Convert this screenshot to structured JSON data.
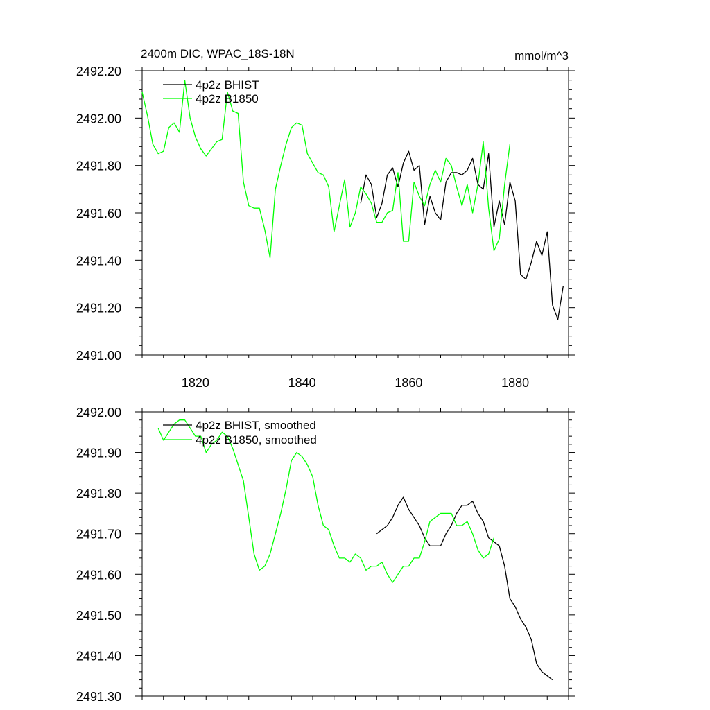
{
  "chart_data": [
    {
      "type": "line",
      "title": "2400m DIC, WPAC_18S-18N",
      "units": "mmol/m^3",
      "xlim": [
        1810,
        1890
      ],
      "ylim": [
        2491.0,
        2492.2
      ],
      "xticks": [
        1820,
        1840,
        1860,
        1880
      ],
      "xtick_labels": [
        "1820",
        "1840",
        "1860",
        "1880"
      ],
      "yticks": [
        2491.0,
        2491.2,
        2491.4,
        2491.6,
        2491.8,
        2492.0,
        2492.2
      ],
      "ytick_labels": [
        "2491.00",
        "2491.20",
        "2491.40",
        "2491.60",
        "2491.80",
        "2492.00",
        "2492.20"
      ],
      "legend_position": "top-left",
      "series": [
        {
          "name": "4p2z BHIST",
          "color": "#000000",
          "x": [
            1851,
            1852,
            1853,
            1854,
            1855,
            1856,
            1857,
            1858,
            1859,
            1860,
            1861,
            1862,
            1863,
            1864,
            1865,
            1866,
            1867,
            1868,
            1869,
            1870,
            1871,
            1872,
            1873,
            1874,
            1875,
            1876,
            1877,
            1878,
            1879,
            1880,
            1881,
            1882,
            1883,
            1884,
            1885,
            1886,
            1887,
            1888,
            1889
          ],
          "values": [
            2491.64,
            2491.76,
            2491.72,
            2491.58,
            2491.64,
            2491.76,
            2491.79,
            2491.71,
            2491.81,
            2491.86,
            2491.78,
            2491.8,
            2491.55,
            2491.67,
            2491.6,
            2491.57,
            2491.73,
            2491.77,
            2491.77,
            2491.76,
            2491.78,
            2491.83,
            2491.72,
            2491.7,
            2491.85,
            2491.54,
            2491.65,
            2491.55,
            2491.73,
            2491.65,
            2491.34,
            2491.32,
            2491.39,
            2491.48,
            2491.42,
            2491.52,
            2491.21,
            2491.15,
            2491.29
          ]
        },
        {
          "name": "4p2z B1850",
          "color": "#00ff00",
          "x": [
            1810,
            1811,
            1812,
            1813,
            1814,
            1815,
            1816,
            1817,
            1818,
            1819,
            1820,
            1821,
            1822,
            1823,
            1824,
            1825,
            1826,
            1827,
            1828,
            1829,
            1830,
            1831,
            1832,
            1833,
            1834,
            1835,
            1836,
            1837,
            1838,
            1839,
            1840,
            1841,
            1842,
            1843,
            1844,
            1845,
            1846,
            1847,
            1848,
            1849,
            1850,
            1851,
            1852,
            1853,
            1854,
            1855,
            1856,
            1857,
            1858,
            1859,
            1860,
            1861,
            1862,
            1863,
            1864,
            1865,
            1866,
            1867,
            1868,
            1869,
            1870,
            1871,
            1872,
            1873,
            1874,
            1875,
            1876,
            1877,
            1878,
            1879
          ],
          "values": [
            2492.11,
            2492.01,
            2491.89,
            2491.85,
            2491.86,
            2491.96,
            2491.98,
            2491.94,
            2492.16,
            2492.0,
            2491.92,
            2491.87,
            2491.84,
            2491.87,
            2491.9,
            2491.91,
            2492.11,
            2492.03,
            2492.02,
            2491.73,
            2491.63,
            2491.62,
            2491.62,
            2491.53,
            2491.41,
            2491.7,
            2491.8,
            2491.89,
            2491.96,
            2491.98,
            2491.97,
            2491.85,
            2491.81,
            2491.77,
            2491.76,
            2491.71,
            2491.52,
            2491.63,
            2491.74,
            2491.54,
            2491.6,
            2491.71,
            2491.68,
            2491.64,
            2491.56,
            2491.56,
            2491.6,
            2491.61,
            2491.77,
            2491.48,
            2491.48,
            2491.73,
            2491.67,
            2491.63,
            2491.72,
            2491.78,
            2491.73,
            2491.83,
            2491.8,
            2491.71,
            2491.63,
            2491.72,
            2491.6,
            2491.72,
            2491.9,
            2491.62,
            2491.44,
            2491.49,
            2491.72,
            2491.89
          ]
        }
      ]
    },
    {
      "type": "line",
      "xlim": [
        1810,
        1890
      ],
      "ylim": [
        2491.3,
        2492.0
      ],
      "xticks": [
        1820,
        1840,
        1860,
        1880
      ],
      "yticks": [
        2491.3,
        2491.4,
        2491.5,
        2491.6,
        2491.7,
        2491.8,
        2491.9,
        2492.0
      ],
      "ytick_labels": [
        "2491.30",
        "2491.40",
        "2491.50",
        "2491.60",
        "2491.70",
        "2491.80",
        "2491.90",
        "2492.00"
      ],
      "legend_position": "top-left",
      "series": [
        {
          "name": "4p2z BHIST, smoothed",
          "color": "#000000",
          "x": [
            1854,
            1855,
            1856,
            1857,
            1858,
            1859,
            1860,
            1861,
            1862,
            1863,
            1864,
            1865,
            1866,
            1867,
            1868,
            1869,
            1870,
            1871,
            1872,
            1873,
            1874,
            1875,
            1876,
            1877,
            1878,
            1879,
            1880,
            1881,
            1882,
            1883,
            1884,
            1885,
            1886,
            1887
          ],
          "values": [
            2491.7,
            2491.71,
            2491.72,
            2491.74,
            2491.77,
            2491.79,
            2491.76,
            2491.74,
            2491.72,
            2491.69,
            2491.67,
            2491.67,
            2491.67,
            2491.7,
            2491.72,
            2491.75,
            2491.77,
            2491.77,
            2491.78,
            2491.75,
            2491.73,
            2491.69,
            2491.68,
            2491.67,
            2491.62,
            2491.54,
            2491.52,
            2491.49,
            2491.47,
            2491.44,
            2491.38,
            2491.36,
            2491.35,
            2491.34
          ]
        },
        {
          "name": "4p2z B1850, smoothed",
          "color": "#00ff00",
          "x": [
            1813,
            1814,
            1815,
            1816,
            1817,
            1818,
            1819,
            1820,
            1821,
            1822,
            1823,
            1824,
            1825,
            1826,
            1827,
            1828,
            1829,
            1830,
            1831,
            1832,
            1833,
            1834,
            1835,
            1836,
            1837,
            1838,
            1839,
            1840,
            1841,
            1842,
            1843,
            1844,
            1845,
            1846,
            1847,
            1848,
            1849,
            1850,
            1851,
            1852,
            1853,
            1854,
            1855,
            1856,
            1857,
            1858,
            1859,
            1860,
            1861,
            1862,
            1863,
            1864,
            1865,
            1866,
            1867,
            1868,
            1869,
            1870,
            1871,
            1872,
            1873,
            1874,
            1875,
            1876
          ],
          "values": [
            2491.96,
            2491.93,
            2491.95,
            2491.97,
            2491.98,
            2491.98,
            2491.96,
            2491.94,
            2491.94,
            2491.9,
            2491.92,
            2491.93,
            2491.95,
            2491.94,
            2491.91,
            2491.87,
            2491.83,
            2491.74,
            2491.65,
            2491.61,
            2491.62,
            2491.65,
            2491.7,
            2491.75,
            2491.81,
            2491.88,
            2491.9,
            2491.89,
            2491.87,
            2491.84,
            2491.77,
            2491.72,
            2491.71,
            2491.67,
            2491.64,
            2491.64,
            2491.63,
            2491.65,
            2491.64,
            2491.61,
            2491.62,
            2491.62,
            2491.63,
            2491.6,
            2491.58,
            2491.6,
            2491.62,
            2491.62,
            2491.64,
            2491.64,
            2491.68,
            2491.73,
            2491.74,
            2491.75,
            2491.75,
            2491.75,
            2491.72,
            2491.72,
            2491.73,
            2491.7,
            2491.66,
            2491.64,
            2491.65,
            2491.69
          ]
        }
      ]
    }
  ]
}
